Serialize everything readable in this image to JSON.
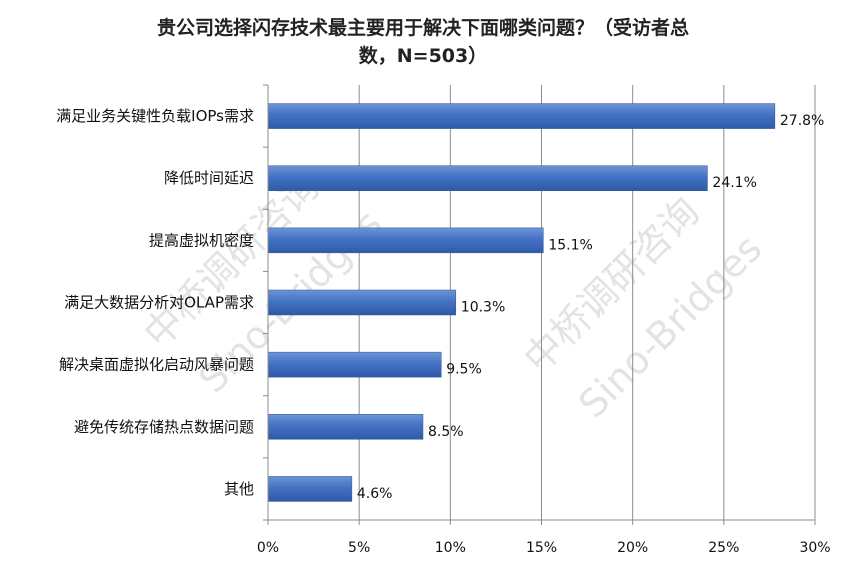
{
  "chart_data": {
    "type": "bar",
    "orientation": "horizontal",
    "title_lines": [
      "贵公司选择闪存技术最主要用于解决下面哪类问题？（受访者总",
      "数，N=503）"
    ],
    "categories": [
      "满足业务关键性负载IOPs需求",
      "降低时间延迟",
      "提高虚拟机密度",
      "满足大数据分析对OLAP需求",
      "解决桌面虚拟化启动风暴问题",
      "避免传统存储热点数据问题",
      "其他"
    ],
    "values": [
      27.8,
      24.1,
      15.1,
      10.3,
      9.5,
      8.5,
      4.6
    ],
    "value_labels": [
      "27.8%",
      "24.1%",
      "15.1%",
      "10.3%",
      "9.5%",
      "8.5%",
      "4.6%"
    ],
    "xlim": [
      0,
      30
    ],
    "x_ticks": [
      0,
      5,
      10,
      15,
      20,
      25,
      30
    ],
    "x_tick_labels": [
      "0%",
      "5%",
      "10%",
      "15%",
      "20%",
      "25%",
      "30%"
    ],
    "xlabel": "",
    "ylabel": "",
    "grid": "vertical",
    "bar_color": "#4472c4",
    "watermark_lines": [
      "中桥调研咨询",
      "Sino-Bridges"
    ]
  }
}
